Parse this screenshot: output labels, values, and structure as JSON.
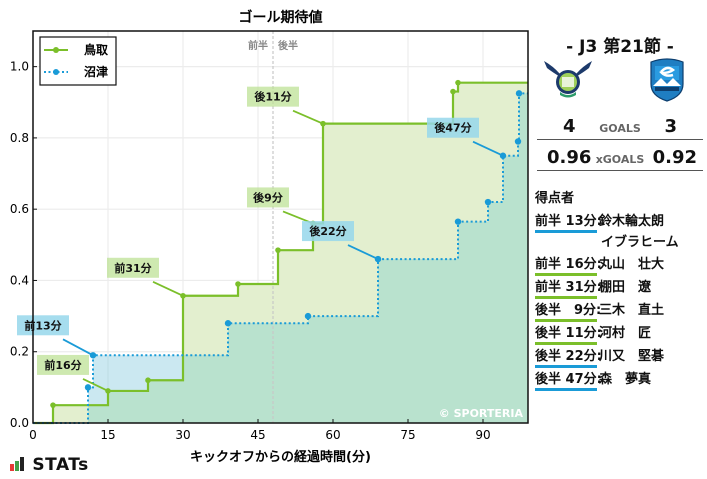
{
  "chart_data": {
    "type": "line",
    "subtype": "step",
    "title": "ゴール期待値",
    "xlabel": "キックオフからの経過時間(分)",
    "ylabel": "",
    "xlim": [
      0,
      99
    ],
    "ylim": [
      0.0,
      1.1
    ],
    "xticks": [
      0,
      15,
      30,
      45,
      60,
      75,
      90
    ],
    "yticks": [
      0.0,
      0.2,
      0.4,
      0.6,
      0.8,
      1.0
    ],
    "xtick_labels": [
      "0",
      "15",
      "30",
      "45",
      "60",
      "75",
      "90"
    ],
    "ytick_labels": [
      "0.0",
      "0.2",
      "0.4",
      "0.6",
      "0.8",
      "1.0"
    ],
    "grid": true,
    "legend_position": "upper left",
    "halftime_line": {
      "x": 48,
      "left_label": "前半",
      "right_label": "後半"
    },
    "watermark": "© SPORTERIA",
    "series": [
      {
        "name": "鳥取",
        "color": "#7bbf2a",
        "fill": "#e3efcf",
        "style": "solid",
        "x": [
          0,
          4,
          15,
          23,
          30,
          41,
          49,
          56,
          58,
          84,
          85,
          99
        ],
        "y": [
          0.0,
          0.05,
          0.09,
          0.12,
          0.357,
          0.39,
          0.485,
          0.56,
          0.84,
          0.93,
          0.955,
          0.955
        ]
      },
      {
        "name": "沼津",
        "color": "#1a9bd7",
        "fill": "#b9e0f0",
        "style": "dotted",
        "x": [
          0,
          11,
          12,
          39,
          55,
          69,
          85,
          91,
          94,
          97,
          97.2,
          99
        ],
        "y": [
          0.0,
          0.1,
          0.19,
          0.28,
          0.3,
          0.46,
          0.565,
          0.62,
          0.75,
          0.79,
          0.925,
          0.925
        ]
      }
    ],
    "annotations": [
      {
        "text": "前13分",
        "team": "沼津",
        "x": 12,
        "y": 0.19
      },
      {
        "text": "前16分",
        "team": "鳥取",
        "x": 15,
        "y": 0.09
      },
      {
        "text": "前31分",
        "team": "鳥取",
        "x": 30,
        "y": 0.357
      },
      {
        "text": "後9分",
        "team": "鳥取",
        "x": 56,
        "y": 0.56
      },
      {
        "text": "後11分",
        "team": "鳥取",
        "x": 58,
        "y": 0.84
      },
      {
        "text": "後22分",
        "team": "沼津",
        "x": 69,
        "y": 0.46
      },
      {
        "text": "後47分",
        "team": "沼津",
        "x": 94,
        "y": 0.75
      }
    ]
  },
  "match": {
    "title": "-  J3 第21節  -",
    "home_team": "鳥取",
    "away_team": "沼津",
    "goals_label": "GOALS",
    "home_goals": "4",
    "away_goals": "3",
    "xgoals_label": "xGOALS",
    "home_xg": "0.96",
    "away_xg": "0.92"
  },
  "scorers": {
    "title": "得点者",
    "items": [
      {
        "time": "前半 13分:",
        "name": "鈴木輪太朗",
        "team": "沼津"
      },
      {
        "time": "",
        "name": "イブラヒーム",
        "team": "沼津"
      },
      {
        "time": "前半 16分:",
        "name": "丸山　壮大",
        "team": "鳥取"
      },
      {
        "time": "前半 31分:",
        "name": "棚田　遼",
        "team": "鳥取"
      },
      {
        "time": "後半　9分:",
        "name": "三木　直土",
        "team": "鳥取"
      },
      {
        "time": "後半 11分:",
        "name": "河村　匠",
        "team": "鳥取"
      },
      {
        "time": "後半 22分:",
        "name": "川又　堅碁",
        "team": "沼津"
      },
      {
        "time": "後半 47分:",
        "name": "森　夢真",
        "team": "沼津"
      }
    ]
  },
  "branding": {
    "stats_logo": "STATs",
    "watermark": "© SPORTERIA"
  }
}
